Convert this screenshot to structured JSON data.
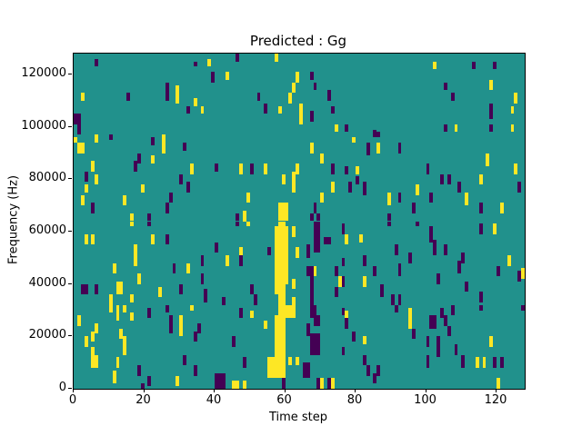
{
  "window": {
    "title": "Predicted : Gg"
  },
  "chart_data": {
    "type": "heatmap",
    "title": "Predicted : Gg",
    "xlabel": "Time step",
    "ylabel": "Frequency (Hz)",
    "x_range": [
      0,
      128
    ],
    "y_range": [
      0,
      128000
    ],
    "x_ticks": [
      0,
      20,
      40,
      60,
      80,
      100,
      120
    ],
    "y_ticks": [
      0,
      20000,
      40000,
      60000,
      80000,
      100000,
      120000
    ],
    "grid_size": [
      128,
      128
    ],
    "legend": "none",
    "grid": false,
    "colors": {
      "mid": "#21918c",
      "high": "#fde725",
      "low": "#440154",
      "axis": "#000000"
    },
    "bin_height_hz": 1000,
    "cells_high_format": "[time_step, freq_bin_bottom, width_steps, height_bins] value=high (yellow)",
    "cells_high": [
      [
        2,
        110,
        1,
        3
      ],
      [
        6,
        95,
        1,
        2
      ],
      [
        25,
        95,
        1,
        2
      ],
      [
        29,
        109,
        1,
        7
      ],
      [
        34,
        108,
        1,
        3
      ],
      [
        36,
        105,
        1,
        3
      ],
      [
        38,
        123,
        1,
        3
      ],
      [
        43,
        118,
        1,
        3
      ],
      [
        57,
        125,
        1,
        3
      ],
      [
        58,
        105,
        1,
        3
      ],
      [
        61,
        109,
        1,
        4
      ],
      [
        62,
        113,
        1,
        4
      ],
      [
        63,
        117,
        1,
        4
      ],
      [
        64,
        101,
        1,
        8
      ],
      [
        74,
        98,
        1,
        3
      ],
      [
        102,
        122,
        1,
        3
      ],
      [
        108,
        98,
        1,
        3
      ],
      [
        118,
        114,
        1,
        4
      ],
      [
        124,
        105,
        1,
        3
      ],
      [
        124,
        98,
        1,
        3
      ],
      [
        125,
        109,
        1,
        4
      ],
      [
        0,
        94,
        1,
        2
      ],
      [
        1,
        90,
        2,
        4
      ],
      [
        6,
        94,
        1,
        2
      ],
      [
        25,
        90,
        1,
        6
      ],
      [
        22,
        86,
        1,
        3
      ],
      [
        5,
        83,
        1,
        4
      ],
      [
        33,
        82,
        1,
        4
      ],
      [
        6,
        78,
        1,
        4
      ],
      [
        3,
        75,
        1,
        3
      ],
      [
        19,
        75,
        1,
        3
      ],
      [
        2,
        70,
        1,
        4
      ],
      [
        14,
        70,
        1,
        4
      ],
      [
        16,
        64,
        1,
        3
      ],
      [
        79,
        94,
        1,
        2
      ],
      [
        67,
        90,
        1,
        4
      ],
      [
        70,
        86,
        1,
        4
      ],
      [
        47,
        82,
        1,
        4
      ],
      [
        54,
        82,
        1,
        4
      ],
      [
        63,
        82,
        1,
        4
      ],
      [
        80,
        82,
        1,
        3
      ],
      [
        59,
        78,
        1,
        4
      ],
      [
        62,
        75,
        1,
        8
      ],
      [
        73,
        75,
        1,
        4
      ],
      [
        49,
        71,
        1,
        4
      ],
      [
        70,
        71,
        1,
        4
      ],
      [
        48,
        64,
        1,
        4
      ],
      [
        58,
        64,
        3,
        7
      ],
      [
        86,
        90,
        1,
        4
      ],
      [
        117,
        85,
        1,
        5
      ],
      [
        125,
        82,
        1,
        4
      ],
      [
        115,
        78,
        1,
        4
      ],
      [
        97,
        74,
        1,
        4
      ],
      [
        89,
        70,
        1,
        5
      ],
      [
        111,
        70,
        1,
        5
      ],
      [
        121,
        67,
        1,
        4
      ],
      [
        16,
        62,
        1,
        2
      ],
      [
        3,
        55,
        1,
        4
      ],
      [
        5,
        55,
        1,
        4
      ],
      [
        22,
        55,
        1,
        4
      ],
      [
        17,
        47,
        1,
        8
      ],
      [
        11,
        44,
        1,
        4
      ],
      [
        32,
        44,
        1,
        4
      ],
      [
        18,
        40,
        1,
        4
      ],
      [
        12,
        36,
        2,
        5
      ],
      [
        24,
        35,
        1,
        4
      ],
      [
        10,
        32,
        1,
        4
      ],
      [
        16,
        33,
        1,
        3
      ],
      [
        49,
        62,
        1,
        2
      ],
      [
        77,
        55,
        1,
        4
      ],
      [
        81,
        56,
        1,
        3
      ],
      [
        47,
        51,
        1,
        3
      ],
      [
        43,
        47,
        1,
        4
      ],
      [
        68,
        43,
        1,
        4
      ],
      [
        75,
        39,
        1,
        4
      ],
      [
        82,
        39,
        1,
        4
      ],
      [
        57,
        36,
        1,
        26
      ],
      [
        58,
        32,
        2,
        32
      ],
      [
        60,
        40,
        1,
        22
      ],
      [
        62,
        58,
        1,
        4
      ],
      [
        63,
        50,
        1,
        4
      ],
      [
        62,
        38,
        1,
        4
      ],
      [
        62,
        32,
        1,
        3
      ],
      [
        119,
        59,
        1,
        4
      ],
      [
        123,
        47,
        1,
        4
      ],
      [
        127,
        42,
        1,
        4
      ],
      [
        10,
        29,
        1,
        3
      ],
      [
        12,
        26,
        1,
        6
      ],
      [
        14,
        29,
        1,
        3
      ],
      [
        16,
        26,
        1,
        3
      ],
      [
        33,
        30,
        1,
        2
      ],
      [
        1,
        24,
        1,
        4
      ],
      [
        6,
        21,
        1,
        4
      ],
      [
        30,
        20,
        1,
        8
      ],
      [
        13,
        19,
        1,
        4
      ],
      [
        5,
        18,
        1,
        4
      ],
      [
        3,
        16,
        1,
        4
      ],
      [
        14,
        13,
        1,
        7
      ],
      [
        5,
        13,
        1,
        3
      ],
      [
        5,
        8,
        2,
        5
      ],
      [
        12,
        8,
        1,
        4
      ],
      [
        11,
        2,
        1,
        5
      ],
      [
        29,
        1,
        1,
        4
      ],
      [
        45,
        0,
        2,
        3
      ],
      [
        48,
        0,
        1,
        3
      ],
      [
        58,
        4,
        2,
        28
      ],
      [
        57,
        12,
        1,
        16
      ],
      [
        55,
        4,
        3,
        8
      ],
      [
        61,
        9,
        1,
        3
      ],
      [
        63,
        9,
        1,
        3
      ],
      [
        60,
        27,
        3,
        5
      ],
      [
        50,
        27,
        1,
        3
      ],
      [
        54,
        23,
        1,
        3
      ],
      [
        77,
        27,
        1,
        3
      ],
      [
        70,
        0,
        1,
        4
      ],
      [
        73,
        0,
        1,
        4
      ],
      [
        82,
        17,
        1,
        3
      ],
      [
        95,
        23,
        1,
        8
      ],
      [
        118,
        16,
        1,
        4
      ],
      [
        114,
        8,
        1,
        4
      ],
      [
        116,
        8,
        1,
        4
      ],
      [
        120,
        0,
        1,
        4
      ]
    ],
    "cells_low_format": "[time_step, freq_bin_bottom, width_steps, height_bins] value=low (dark purple)",
    "cells_low": [
      [
        6,
        123,
        1,
        3
      ],
      [
        34,
        123,
        1,
        2
      ],
      [
        39,
        117,
        1,
        4
      ],
      [
        15,
        110,
        1,
        3
      ],
      [
        26,
        110,
        1,
        7
      ],
      [
        32,
        105,
        1,
        3
      ],
      [
        0,
        101,
        2,
        4
      ],
      [
        1,
        97,
        1,
        4
      ],
      [
        10,
        95,
        1,
        2
      ],
      [
        22,
        93,
        1,
        3
      ],
      [
        46,
        125,
        1,
        3
      ],
      [
        67,
        118,
        1,
        3
      ],
      [
        68,
        114,
        1,
        3
      ],
      [
        52,
        110,
        1,
        3
      ],
      [
        54,
        105,
        1,
        4
      ],
      [
        72,
        110,
        1,
        4
      ],
      [
        73,
        105,
        1,
        3
      ],
      [
        67,
        102,
        1,
        4
      ],
      [
        77,
        98,
        1,
        3
      ],
      [
        85,
        96,
        1,
        3
      ],
      [
        113,
        122,
        1,
        3
      ],
      [
        119,
        122,
        1,
        3
      ],
      [
        105,
        114,
        1,
        3
      ],
      [
        107,
        110,
        1,
        3
      ],
      [
        118,
        103,
        1,
        6
      ],
      [
        105,
        98,
        1,
        3
      ],
      [
        118,
        98,
        1,
        3
      ],
      [
        86,
        96,
        1,
        2
      ],
      [
        31,
        91,
        1,
        3
      ],
      [
        18,
        86,
        1,
        4
      ],
      [
        17,
        83,
        1,
        4
      ],
      [
        40,
        83,
        1,
        3
      ],
      [
        3,
        79,
        1,
        4
      ],
      [
        30,
        78,
        1,
        4
      ],
      [
        32,
        75,
        1,
        4
      ],
      [
        27,
        71,
        1,
        4
      ],
      [
        5,
        67,
        1,
        4
      ],
      [
        26,
        67,
        1,
        4
      ],
      [
        21,
        64,
        1,
        3
      ],
      [
        83,
        89,
        1,
        5
      ],
      [
        50,
        82,
        1,
        4
      ],
      [
        73,
        82,
        1,
        4
      ],
      [
        77,
        82,
        1,
        3
      ],
      [
        80,
        78,
        1,
        3
      ],
      [
        78,
        75,
        1,
        4
      ],
      [
        82,
        74,
        1,
        5
      ],
      [
        68,
        67,
        1,
        4
      ],
      [
        46,
        64,
        1,
        3
      ],
      [
        67,
        64,
        1,
        3
      ],
      [
        69,
        64,
        1,
        3
      ],
      [
        92,
        90,
        1,
        4
      ],
      [
        100,
        82,
        1,
        4
      ],
      [
        104,
        78,
        1,
        4
      ],
      [
        106,
        78,
        1,
        4
      ],
      [
        109,
        75,
        1,
        4
      ],
      [
        126,
        75,
        1,
        4
      ],
      [
        92,
        71,
        1,
        4
      ],
      [
        101,
        71,
        1,
        4
      ],
      [
        96,
        67,
        1,
        4
      ],
      [
        115,
        67,
        1,
        4
      ],
      [
        89,
        64,
        1,
        3
      ],
      [
        21,
        62,
        1,
        2
      ],
      [
        26,
        55,
        1,
        4
      ],
      [
        40,
        52,
        1,
        4
      ],
      [
        36,
        47,
        1,
        4
      ],
      [
        28,
        44,
        1,
        4
      ],
      [
        36,
        40,
        1,
        4
      ],
      [
        2,
        36,
        2,
        4
      ],
      [
        6,
        36,
        1,
        4
      ],
      [
        30,
        36,
        1,
        4
      ],
      [
        37,
        33,
        1,
        5
      ],
      [
        42,
        32,
        1,
        3
      ],
      [
        46,
        62,
        1,
        2
      ],
      [
        55,
        51,
        1,
        3
      ],
      [
        47,
        47,
        1,
        4
      ],
      [
        76,
        59,
        1,
        4
      ],
      [
        76,
        47,
        1,
        3
      ],
      [
        82,
        47,
        1,
        4
      ],
      [
        66,
        43,
        1,
        4
      ],
      [
        74,
        43,
        1,
        4
      ],
      [
        76,
        39,
        1,
        4
      ],
      [
        74,
        35,
        1,
        4
      ],
      [
        50,
        36,
        1,
        4
      ],
      [
        51,
        32,
        1,
        4
      ],
      [
        85,
        43,
        1,
        4
      ],
      [
        68,
        52,
        2,
        12
      ],
      [
        66,
        50,
        1,
        5
      ],
      [
        71,
        55,
        2,
        3
      ],
      [
        67,
        32,
        1,
        15
      ],
      [
        89,
        62,
        1,
        2
      ],
      [
        97,
        62,
        1,
        2
      ],
      [
        115,
        59,
        1,
        4
      ],
      [
        101,
        56,
        1,
        6
      ],
      [
        102,
        51,
        1,
        6
      ],
      [
        91,
        51,
        1,
        4
      ],
      [
        105,
        51,
        1,
        4
      ],
      [
        95,
        48,
        1,
        4
      ],
      [
        110,
        48,
        1,
        4
      ],
      [
        92,
        43,
        1,
        5
      ],
      [
        109,
        44,
        1,
        5
      ],
      [
        120,
        43,
        1,
        4
      ],
      [
        126,
        41,
        1,
        4
      ],
      [
        103,
        40,
        1,
        4
      ],
      [
        111,
        37,
        1,
        4
      ],
      [
        87,
        35,
        1,
        5
      ],
      [
        115,
        33,
        1,
        4
      ],
      [
        90,
        32,
        1,
        4
      ],
      [
        92,
        32,
        1,
        4
      ],
      [
        21,
        27,
        1,
        4
      ],
      [
        26,
        29,
        1,
        3
      ],
      [
        27,
        21,
        1,
        7
      ],
      [
        35,
        21,
        1,
        4
      ],
      [
        34,
        18,
        1,
        4
      ],
      [
        31,
        9,
        1,
        4
      ],
      [
        34,
        5,
        1,
        4
      ],
      [
        18,
        5,
        1,
        4
      ],
      [
        21,
        1,
        1,
        4
      ],
      [
        19,
        0,
        1,
        2
      ],
      [
        40,
        0,
        3,
        6
      ],
      [
        47,
        27,
        1,
        4
      ],
      [
        45,
        16,
        1,
        4
      ],
      [
        48,
        8,
        1,
        4
      ],
      [
        76,
        13,
        1,
        3
      ],
      [
        79,
        18,
        1,
        4
      ],
      [
        82,
        9,
        1,
        4
      ],
      [
        83,
        5,
        1,
        4
      ],
      [
        85,
        2,
        1,
        4
      ],
      [
        76,
        28,
        1,
        3
      ],
      [
        77,
        23,
        1,
        4
      ],
      [
        67,
        27,
        2,
        5
      ],
      [
        68,
        24,
        2,
        4
      ],
      [
        66,
        20,
        1,
        5
      ],
      [
        67,
        13,
        3,
        8
      ],
      [
        65,
        4,
        2,
        6
      ],
      [
        59,
        0,
        1,
        4
      ],
      [
        69,
        0,
        1,
        4
      ],
      [
        72,
        0,
        1,
        4
      ],
      [
        91,
        29,
        1,
        3
      ],
      [
        115,
        30,
        1,
        2
      ],
      [
        101,
        23,
        2,
        5
      ],
      [
        104,
        27,
        1,
        4
      ],
      [
        107,
        28,
        1,
        4
      ],
      [
        105,
        24,
        1,
        4
      ],
      [
        96,
        19,
        1,
        4
      ],
      [
        106,
        20,
        1,
        4
      ],
      [
        100,
        16,
        1,
        4
      ],
      [
        103,
        12,
        1,
        8
      ],
      [
        108,
        13,
        1,
        4
      ],
      [
        100,
        8,
        1,
        5
      ],
      [
        110,
        8,
        1,
        5
      ],
      [
        119,
        8,
        1,
        4
      ],
      [
        121,
        8,
        1,
        4
      ],
      [
        86,
        5,
        1,
        4
      ],
      [
        127,
        30,
        1,
        2
      ]
    ]
  }
}
